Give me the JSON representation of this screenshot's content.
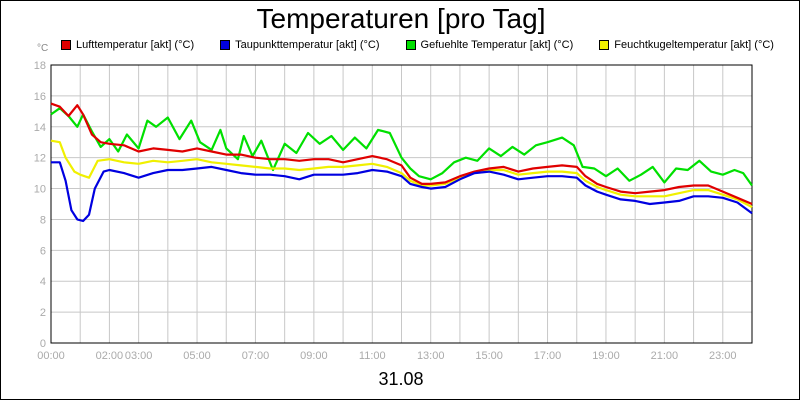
{
  "chart_data": {
    "type": "line",
    "title": "Temperaturen [pro Tag]",
    "xlabel": "31.08",
    "ylabel": "°C",
    "ylim": [
      0,
      18
    ],
    "xlim": [
      0,
      24
    ],
    "grid": true,
    "legend_position": "top",
    "yticks": [
      0,
      2,
      4,
      6,
      8,
      10,
      12,
      14,
      16,
      18
    ],
    "xticks": [
      {
        "value": 0,
        "label": "00:00"
      },
      {
        "value": 2,
        "label": "02:00"
      },
      {
        "value": 3,
        "label": "03:00"
      },
      {
        "value": 5,
        "label": "05:00"
      },
      {
        "value": 7,
        "label": "07:00"
      },
      {
        "value": 9,
        "label": "09:00"
      },
      {
        "value": 11,
        "label": "11:00"
      },
      {
        "value": 13,
        "label": "13:00"
      },
      {
        "value": 15,
        "label": "15:00"
      },
      {
        "value": 17,
        "label": "17:00"
      },
      {
        "value": 19,
        "label": "19:00"
      },
      {
        "value": 21,
        "label": "21:00"
      },
      {
        "value": 23,
        "label": "23:00"
      }
    ],
    "series": [
      {
        "name": "Lufttemperatur [akt] (°C)",
        "color": "#e00000",
        "points": [
          [
            0,
            15.5
          ],
          [
            0.3,
            15.3
          ],
          [
            0.6,
            14.7
          ],
          [
            0.9,
            15.4
          ],
          [
            1.1,
            14.8
          ],
          [
            1.4,
            13.5
          ],
          [
            1.7,
            13.0
          ],
          [
            2.0,
            12.9
          ],
          [
            2.5,
            12.8
          ],
          [
            3.0,
            12.4
          ],
          [
            3.5,
            12.6
          ],
          [
            4.0,
            12.5
          ],
          [
            4.5,
            12.4
          ],
          [
            5.0,
            12.6
          ],
          [
            5.5,
            12.4
          ],
          [
            6.0,
            12.2
          ],
          [
            6.5,
            12.2
          ],
          [
            7.0,
            12.0
          ],
          [
            7.5,
            11.9
          ],
          [
            8.0,
            11.9
          ],
          [
            8.5,
            11.8
          ],
          [
            9.0,
            11.9
          ],
          [
            9.5,
            11.9
          ],
          [
            10.0,
            11.7
          ],
          [
            10.5,
            11.9
          ],
          [
            11.0,
            12.1
          ],
          [
            11.5,
            11.9
          ],
          [
            12.0,
            11.5
          ],
          [
            12.3,
            10.7
          ],
          [
            12.7,
            10.3
          ],
          [
            13.0,
            10.3
          ],
          [
            13.5,
            10.4
          ],
          [
            14.0,
            10.8
          ],
          [
            14.5,
            11.1
          ],
          [
            15.0,
            11.3
          ],
          [
            15.5,
            11.4
          ],
          [
            16.0,
            11.1
          ],
          [
            16.5,
            11.3
          ],
          [
            17.0,
            11.4
          ],
          [
            17.5,
            11.5
          ],
          [
            18.0,
            11.4
          ],
          [
            18.3,
            10.8
          ],
          [
            18.7,
            10.3
          ],
          [
            19.0,
            10.1
          ],
          [
            19.5,
            9.8
          ],
          [
            20.0,
            9.7
          ],
          [
            20.5,
            9.8
          ],
          [
            21.0,
            9.9
          ],
          [
            21.5,
            10.1
          ],
          [
            22.0,
            10.2
          ],
          [
            22.5,
            10.2
          ],
          [
            23.0,
            9.8
          ],
          [
            23.5,
            9.4
          ],
          [
            24.0,
            9.0
          ]
        ]
      },
      {
        "name": "Taupunkttemperatur [akt] (°C)",
        "color": "#0000e0",
        "points": [
          [
            0,
            11.7
          ],
          [
            0.3,
            11.7
          ],
          [
            0.5,
            10.5
          ],
          [
            0.7,
            8.6
          ],
          [
            0.9,
            8.0
          ],
          [
            1.1,
            7.9
          ],
          [
            1.3,
            8.3
          ],
          [
            1.5,
            10.0
          ],
          [
            1.8,
            11.1
          ],
          [
            2.0,
            11.2
          ],
          [
            2.5,
            11.0
          ],
          [
            3.0,
            10.7
          ],
          [
            3.5,
            11.0
          ],
          [
            4.0,
            11.2
          ],
          [
            4.5,
            11.2
          ],
          [
            5.0,
            11.3
          ],
          [
            5.5,
            11.4
          ],
          [
            6.0,
            11.2
          ],
          [
            6.5,
            11.0
          ],
          [
            7.0,
            10.9
          ],
          [
            7.5,
            10.9
          ],
          [
            8.0,
            10.8
          ],
          [
            8.5,
            10.6
          ],
          [
            9.0,
            10.9
          ],
          [
            9.5,
            10.9
          ],
          [
            10.0,
            10.9
          ],
          [
            10.5,
            11.0
          ],
          [
            11.0,
            11.2
          ],
          [
            11.5,
            11.1
          ],
          [
            12.0,
            10.8
          ],
          [
            12.3,
            10.3
          ],
          [
            12.7,
            10.1
          ],
          [
            13.0,
            10.0
          ],
          [
            13.5,
            10.1
          ],
          [
            14.0,
            10.6
          ],
          [
            14.5,
            11.0
          ],
          [
            15.0,
            11.1
          ],
          [
            15.5,
            10.9
          ],
          [
            16.0,
            10.6
          ],
          [
            16.5,
            10.7
          ],
          [
            17.0,
            10.8
          ],
          [
            17.5,
            10.8
          ],
          [
            18.0,
            10.7
          ],
          [
            18.3,
            10.2
          ],
          [
            18.7,
            9.8
          ],
          [
            19.0,
            9.6
          ],
          [
            19.5,
            9.3
          ],
          [
            20.0,
            9.2
          ],
          [
            20.5,
            9.0
          ],
          [
            21.0,
            9.1
          ],
          [
            21.5,
            9.2
          ],
          [
            22.0,
            9.5
          ],
          [
            22.5,
            9.5
          ],
          [
            23.0,
            9.4
          ],
          [
            23.5,
            9.1
          ],
          [
            24.0,
            8.4
          ]
        ]
      },
      {
        "name": "Gefuehlte Temperatur [akt] (°C)",
        "color": "#00e000",
        "points": [
          [
            0,
            14.8
          ],
          [
            0.3,
            15.2
          ],
          [
            0.6,
            14.7
          ],
          [
            0.9,
            14.0
          ],
          [
            1.1,
            14.8
          ],
          [
            1.4,
            13.7
          ],
          [
            1.7,
            12.7
          ],
          [
            2.0,
            13.2
          ],
          [
            2.3,
            12.4
          ],
          [
            2.6,
            13.5
          ],
          [
            3.0,
            12.6
          ],
          [
            3.3,
            14.4
          ],
          [
            3.6,
            14.0
          ],
          [
            4.0,
            14.6
          ],
          [
            4.4,
            13.2
          ],
          [
            4.8,
            14.4
          ],
          [
            5.1,
            13.0
          ],
          [
            5.5,
            12.5
          ],
          [
            5.8,
            13.8
          ],
          [
            6.0,
            12.6
          ],
          [
            6.4,
            11.9
          ],
          [
            6.6,
            13.4
          ],
          [
            6.9,
            12.1
          ],
          [
            7.2,
            13.1
          ],
          [
            7.6,
            11.2
          ],
          [
            8.0,
            12.9
          ],
          [
            8.4,
            12.3
          ],
          [
            8.8,
            13.6
          ],
          [
            9.2,
            12.9
          ],
          [
            9.6,
            13.4
          ],
          [
            10.0,
            12.5
          ],
          [
            10.4,
            13.3
          ],
          [
            10.8,
            12.6
          ],
          [
            11.2,
            13.8
          ],
          [
            11.6,
            13.6
          ],
          [
            12.0,
            12.0
          ],
          [
            12.3,
            11.3
          ],
          [
            12.6,
            10.8
          ],
          [
            13.0,
            10.6
          ],
          [
            13.4,
            11.0
          ],
          [
            13.8,
            11.7
          ],
          [
            14.2,
            12.0
          ],
          [
            14.6,
            11.8
          ],
          [
            15.0,
            12.6
          ],
          [
            15.4,
            12.1
          ],
          [
            15.8,
            12.7
          ],
          [
            16.2,
            12.2
          ],
          [
            16.6,
            12.8
          ],
          [
            17.0,
            13.0
          ],
          [
            17.5,
            13.3
          ],
          [
            17.9,
            12.8
          ],
          [
            18.2,
            11.4
          ],
          [
            18.6,
            11.3
          ],
          [
            19.0,
            10.8
          ],
          [
            19.4,
            11.3
          ],
          [
            19.8,
            10.5
          ],
          [
            20.2,
            10.9
          ],
          [
            20.6,
            11.4
          ],
          [
            21.0,
            10.4
          ],
          [
            21.4,
            11.3
          ],
          [
            21.8,
            11.2
          ],
          [
            22.2,
            11.8
          ],
          [
            22.6,
            11.1
          ],
          [
            23.0,
            10.9
          ],
          [
            23.4,
            11.2
          ],
          [
            23.7,
            11.0
          ],
          [
            24.0,
            10.2
          ]
        ]
      },
      {
        "name": "Feuchtkugeltemperatur [akt] (°C)",
        "color": "#f0f000",
        "points": [
          [
            0,
            13.1
          ],
          [
            0.3,
            13.0
          ],
          [
            0.5,
            12.0
          ],
          [
            0.8,
            11.1
          ],
          [
            1.0,
            10.9
          ],
          [
            1.3,
            10.7
          ],
          [
            1.6,
            11.8
          ],
          [
            2.0,
            11.9
          ],
          [
            2.5,
            11.7
          ],
          [
            3.0,
            11.6
          ],
          [
            3.5,
            11.8
          ],
          [
            4.0,
            11.7
          ],
          [
            4.5,
            11.8
          ],
          [
            5.0,
            11.9
          ],
          [
            5.5,
            11.7
          ],
          [
            6.0,
            11.6
          ],
          [
            6.5,
            11.5
          ],
          [
            7.0,
            11.4
          ],
          [
            7.5,
            11.3
          ],
          [
            8.0,
            11.3
          ],
          [
            8.5,
            11.2
          ],
          [
            9.0,
            11.3
          ],
          [
            9.5,
            11.4
          ],
          [
            10.0,
            11.4
          ],
          [
            10.5,
            11.5
          ],
          [
            11.0,
            11.6
          ],
          [
            11.5,
            11.4
          ],
          [
            12.0,
            11.0
          ],
          [
            12.3,
            10.5
          ],
          [
            12.7,
            10.2
          ],
          [
            13.0,
            10.2
          ],
          [
            13.5,
            10.3
          ],
          [
            14.0,
            10.7
          ],
          [
            14.5,
            11.0
          ],
          [
            15.0,
            11.2
          ],
          [
            15.5,
            11.2
          ],
          [
            16.0,
            10.9
          ],
          [
            16.5,
            11.0
          ],
          [
            17.0,
            11.1
          ],
          [
            17.5,
            11.1
          ],
          [
            18.0,
            11.0
          ],
          [
            18.3,
            10.5
          ],
          [
            18.7,
            10.1
          ],
          [
            19.0,
            9.9
          ],
          [
            19.5,
            9.6
          ],
          [
            20.0,
            9.5
          ],
          [
            20.5,
            9.5
          ],
          [
            21.0,
            9.5
          ],
          [
            21.5,
            9.7
          ],
          [
            22.0,
            9.9
          ],
          [
            22.5,
            9.9
          ],
          [
            23.0,
            9.6
          ],
          [
            23.5,
            9.3
          ],
          [
            24.0,
            8.8
          ]
        ]
      }
    ]
  }
}
